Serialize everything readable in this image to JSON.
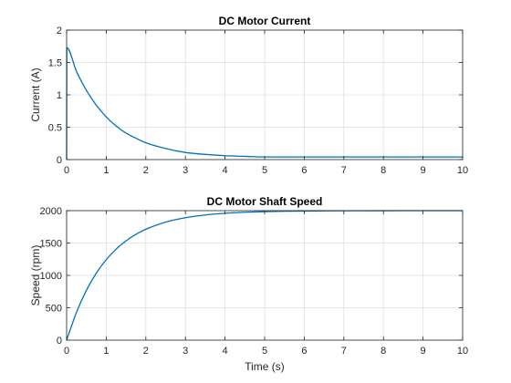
{
  "chart_data": [
    {
      "type": "line",
      "title": "DC Motor Current",
      "xlabel": "",
      "ylabel": "Current (A)",
      "xlim": [
        0,
        10
      ],
      "ylim": [
        0,
        2
      ],
      "xticks": [
        "0",
        "1",
        "2",
        "3",
        "4",
        "5",
        "6",
        "7",
        "8",
        "9",
        "10"
      ],
      "yticks": [
        "0",
        "0.5",
        "1",
        "1.5",
        "2"
      ],
      "grid": true,
      "color": "#0072bd",
      "series": [
        {
          "x": [
            0,
            0.005,
            0.25,
            0.5,
            0.75,
            1,
            1.25,
            1.5,
            1.75,
            2,
            2.5,
            3,
            3.5,
            4,
            4.5,
            5,
            6,
            7,
            8,
            9,
            10
          ],
          "y": [
            0,
            1.73,
            1.36,
            1.07,
            0.84,
            0.66,
            0.52,
            0.41,
            0.33,
            0.26,
            0.17,
            0.11,
            0.08,
            0.06,
            0.05,
            0.04,
            0.04,
            0.04,
            0.04,
            0.04,
            0.04
          ]
        }
      ]
    },
    {
      "type": "line",
      "title": "DC Motor Shaft Speed",
      "xlabel": "Time (s)",
      "ylabel": "Speed (rpm)",
      "xlim": [
        0,
        10
      ],
      "ylim": [
        0,
        2000
      ],
      "xticks": [
        "0",
        "1",
        "2",
        "3",
        "4",
        "5",
        "6",
        "7",
        "8",
        "9",
        "10"
      ],
      "yticks": [
        "0",
        "500",
        "1000",
        "1500",
        "2000"
      ],
      "grid": true,
      "color": "#0072bd",
      "series": [
        {
          "x": [
            0,
            0.25,
            0.5,
            0.75,
            1,
            1.25,
            1.5,
            1.75,
            2,
            2.5,
            3,
            3.5,
            4,
            4.5,
            5,
            6,
            7,
            8,
            9,
            10
          ],
          "y": [
            0,
            432,
            770,
            1035,
            1243,
            1406,
            1534,
            1634,
            1713,
            1823,
            1891,
            1933,
            1959,
            1975,
            1985,
            1994,
            1998,
            1999,
            2000,
            2000
          ]
        }
      ]
    }
  ]
}
